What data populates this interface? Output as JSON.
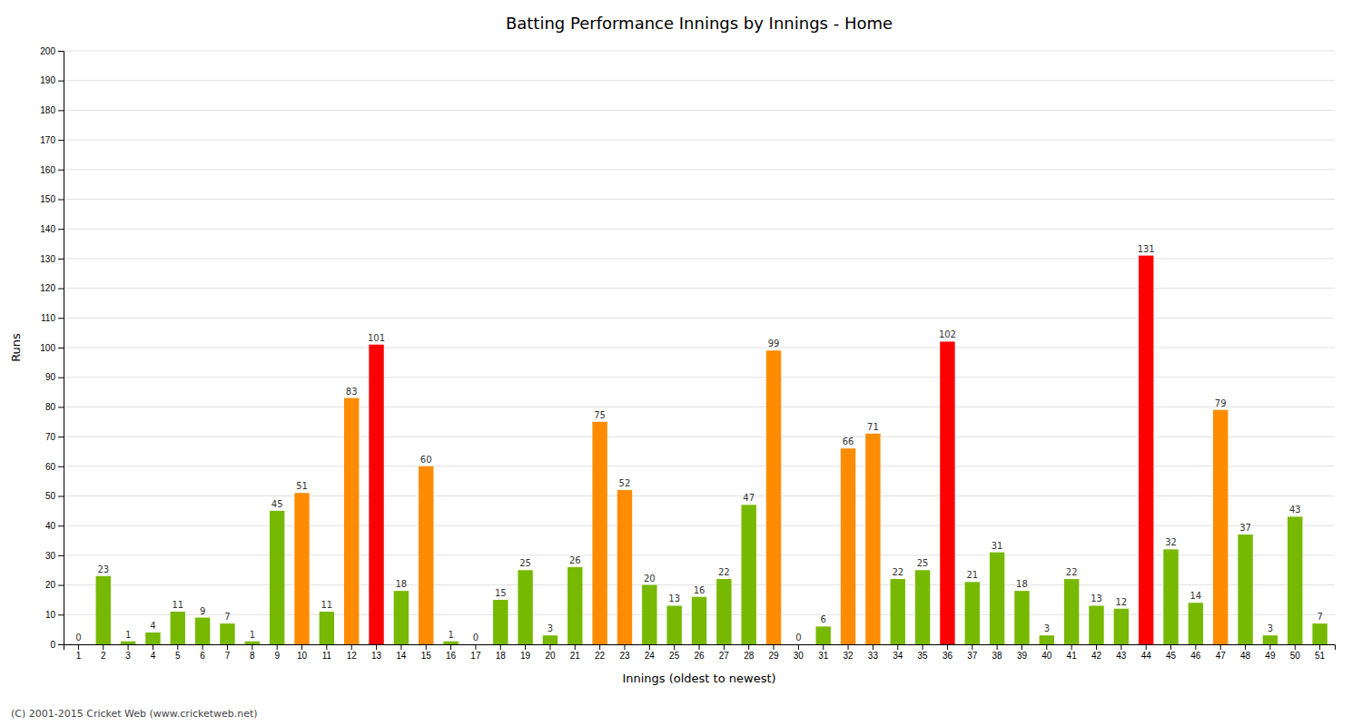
{
  "chart_data": {
    "type": "bar",
    "title": "Batting Performance Innings by Innings - Home",
    "x_label": "Innings (oldest to newest)",
    "y_label": "Runs",
    "annotations": [
      "(C) 2001-2015 Cricket Web (www.cricketweb.net)"
    ],
    "categories": [
      1,
      2,
      3,
      4,
      5,
      6,
      7,
      8,
      9,
      10,
      11,
      12,
      13,
      14,
      15,
      16,
      17,
      18,
      19,
      20,
      21,
      22,
      23,
      24,
      25,
      26,
      27,
      28,
      29,
      30,
      31,
      32,
      33,
      34,
      35,
      36,
      37,
      38,
      39,
      40,
      41,
      42,
      43,
      44,
      45,
      46,
      47,
      48,
      49,
      50,
      51
    ],
    "values": [
      0,
      23,
      1,
      4,
      11,
      9,
      7,
      1,
      45,
      51,
      11,
      83,
      101,
      18,
      60,
      1,
      0,
      15,
      25,
      3,
      26,
      75,
      52,
      20,
      13,
      16,
      22,
      47,
      99,
      0,
      6,
      66,
      71,
      22,
      25,
      102,
      21,
      31,
      18,
      3,
      22,
      13,
      12,
      131,
      32,
      14,
      79,
      37,
      3,
      43,
      7
    ],
    "colors": [
      "#76b900",
      "#76b900",
      "#76b900",
      "#76b900",
      "#76b900",
      "#76b900",
      "#76b900",
      "#76b900",
      "#76b900",
      "#ff8c00",
      "#76b900",
      "#ff8c00",
      "#ff0000",
      "#76b900",
      "#ff8c00",
      "#76b900",
      "#76b900",
      "#76b900",
      "#76b900",
      "#76b900",
      "#76b900",
      "#ff8c00",
      "#ff8c00",
      "#76b900",
      "#76b900",
      "#76b900",
      "#76b900",
      "#76b900",
      "#ff8c00",
      "#76b900",
      "#76b900",
      "#ff8c00",
      "#ff8c00",
      "#76b900",
      "#76b900",
      "#ff0000",
      "#76b900",
      "#76b900",
      "#76b900",
      "#76b900",
      "#76b900",
      "#76b900",
      "#76b900",
      "#ff0000",
      "#76b900",
      "#76b900",
      "#ff8c00",
      "#76b900",
      "#76b900",
      "#76b900",
      "#76b900"
    ],
    "ylim": [
      0,
      200
    ],
    "yticks": [
      0,
      10,
      20,
      30,
      40,
      50,
      60,
      70,
      80,
      90,
      100,
      110,
      120,
      130,
      140,
      150,
      160,
      170,
      180,
      190,
      200
    ],
    "grid": true,
    "data_labels": true
  }
}
